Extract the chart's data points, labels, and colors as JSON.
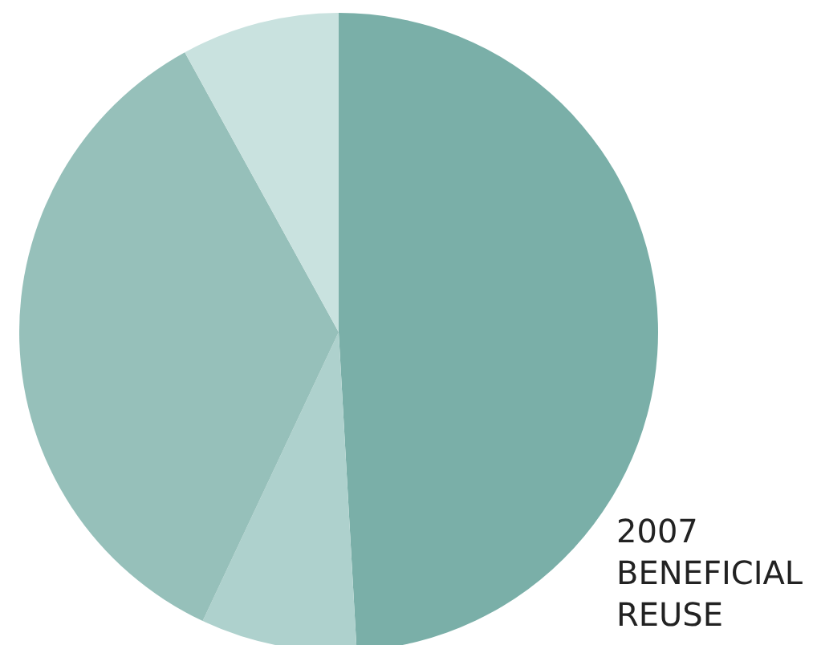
{
  "chart_data": {
    "type": "pie",
    "title": "2007 BENEFICIAL REUSE",
    "categories": [
      null,
      null,
      null,
      null
    ],
    "values": [
      49.1,
      7.9,
      35.0,
      8.0
    ],
    "colors": [
      "#7aafa8",
      "#aed1cd",
      "#96c0ba",
      "#c9e2df"
    ],
    "legend": false
  }
}
